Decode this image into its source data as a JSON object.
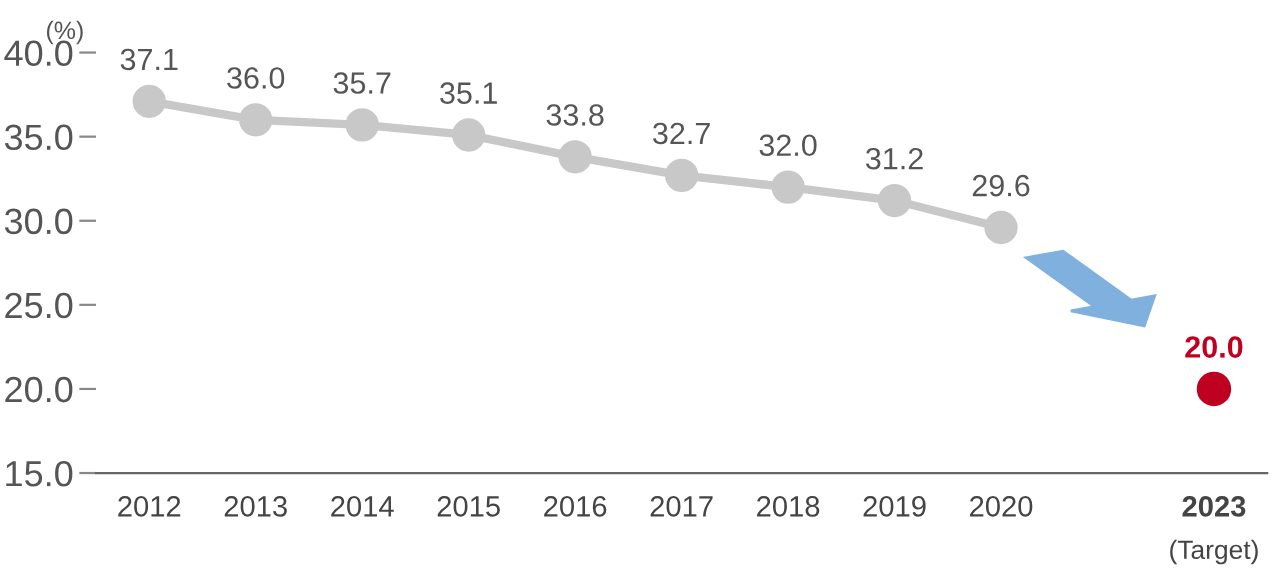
{
  "chart_data": {
    "type": "line",
    "ylabel": "(%)",
    "categories": [
      "2012",
      "2013",
      "2014",
      "2015",
      "2016",
      "2017",
      "2018",
      "2019",
      "2020",
      null,
      "2023"
    ],
    "series": [
      {
        "color": "#c8c8c8",
        "values": [
          37.1,
          36.0,
          35.7,
          35.1,
          33.8,
          32.7,
          32.0,
          31.2,
          29.6,
          null,
          null
        ],
        "value_labels": [
          "37.1",
          "36.0",
          "35.7",
          "35.1",
          "33.8",
          "32.7",
          "32.0",
          "31.2",
          "29.6",
          null,
          null
        ]
      },
      {
        "type": "scatter",
        "color": "#c00020",
        "values": [
          null,
          null,
          null,
          null,
          null,
          null,
          null,
          null,
          null,
          null,
          20.0
        ],
        "value_labels": [
          null,
          null,
          null,
          null,
          null,
          null,
          null,
          null,
          null,
          null,
          "20.0"
        ]
      }
    ],
    "ylim": [
      15,
      40
    ],
    "yticks": [
      {
        "value": 15,
        "label": "15.0"
      },
      {
        "value": 20,
        "label": "20.0"
      },
      {
        "value": 25,
        "label": "25.0"
      },
      {
        "value": 30,
        "label": "30.0"
      },
      {
        "value": 35,
        "label": "35.0"
      },
      {
        "value": 40,
        "label": "40.0"
      }
    ],
    "marker": "circle",
    "grid": false,
    "legend": false,
    "annotations": [
      "(Target)"
    ]
  }
}
